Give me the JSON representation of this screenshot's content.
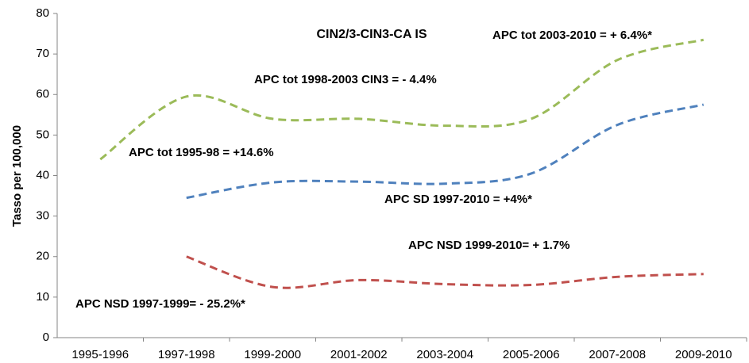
{
  "chart_data": {
    "type": "line",
    "title": "CIN2/3-CIN3-CA IS",
    "y_label": "Tasso per 100,000",
    "categories": [
      "1995-1996",
      "1997-1998",
      "1999-2000",
      "2001-2002",
      "2003-2004",
      "2005-2006",
      "2007-2008",
      "2009-2010"
    ],
    "series": [
      {
        "color": "#9bbb59",
        "values": [
          44,
          59.5,
          54,
          54,
          52.3,
          54,
          68.5,
          73.5
        ]
      },
      {
        "color": "#4f81bd",
        "values": [
          null,
          34.5,
          38.3,
          38.5,
          38,
          40.5,
          52.5,
          57.5
        ]
      },
      {
        "color": "#c0504d",
        "values": [
          null,
          20,
          12.5,
          14.2,
          13.2,
          13,
          15,
          15.7
        ]
      }
    ],
    "annotations": [
      "APC tot 2003-2010  = + 6.4%*",
      "APC tot 1998-2003 CIN3 = - 4.4%",
      "APC tot 1995-98  = +14.6%",
      "APC SD 1997-2010 = +4%*",
      "APC NSD  1999-2010= + 1.7%",
      "APC NSD  1997-1999= - 25.2%*"
    ],
    "ylim": [
      0,
      80
    ],
    "yticks": [
      0,
      10,
      20,
      30,
      40,
      50,
      60,
      70,
      80
    ],
    "grid": false,
    "dashed": true
  }
}
